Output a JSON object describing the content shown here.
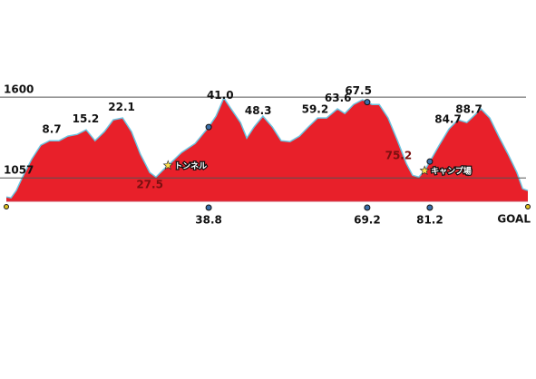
{
  "chart_data": {
    "type": "area",
    "x": [
      0,
      0.9,
      1.9,
      3.1,
      4.9,
      6.6,
      8.3,
      10.1,
      11.8,
      13.6,
      15.3,
      17.0,
      18.8,
      20.5,
      22.3,
      24.0,
      25.7,
      27.5,
      28.7,
      30.1,
      31.8,
      33.6,
      36.2,
      38.8,
      40.2,
      41.7,
      43.1,
      44.9,
      46.1,
      47.5,
      49.2,
      51.0,
      52.7,
      54.4,
      56.2,
      57.9,
      59.7,
      61.4,
      63.5,
      64.9,
      66.6,
      68.3,
      70.1,
      71.5,
      73.2,
      75.0,
      76.7,
      77.9,
      79.1,
      80.2,
      81.2,
      83.0,
      84.9,
      86.6,
      88.3,
      89.6,
      91.0,
      92.7,
      94.4,
      96.2,
      97.9,
      99.0,
      100
    ],
    "values": [
      929,
      923,
      972,
      1063,
      1185,
      1277,
      1307,
      1307,
      1338,
      1350,
      1380,
      1307,
      1368,
      1447,
      1460,
      1368,
      1216,
      1094,
      1063,
      1112,
      1167,
      1228,
      1289,
      1399,
      1472,
      1594,
      1521,
      1429,
      1325,
      1399,
      1472,
      1399,
      1307,
      1301,
      1338,
      1399,
      1460,
      1460,
      1521,
      1490,
      1551,
      1582,
      1551,
      1551,
      1460,
      1307,
      1155,
      1075,
      1063,
      1106,
      1167,
      1277,
      1387,
      1447,
      1429,
      1472,
      1521,
      1460,
      1338,
      1216,
      1094,
      984,
      972
    ],
    "color": "#e8202a",
    "xlim": [
      0,
      100
    ],
    "ylim": [
      900,
      1680
    ],
    "yticks": [
      1600,
      1057
    ],
    "peak_labels": [
      8.7,
      15.2,
      22.1,
      {
        "value": 41,
        "label": "41.0"
      },
      48.3,
      59.2,
      63.6,
      67.5,
      84.7,
      88.7
    ],
    "valley_labels": [
      27.5,
      75.2
    ],
    "checkpoints": [
      38.8,
      69.2,
      81.2
    ],
    "landmarks": [
      {
        "x": 31.0,
        "label": "トンネル"
      },
      {
        "x": 80.2,
        "label": "キャンプ場"
      }
    ],
    "goal_label": "GOAL"
  }
}
